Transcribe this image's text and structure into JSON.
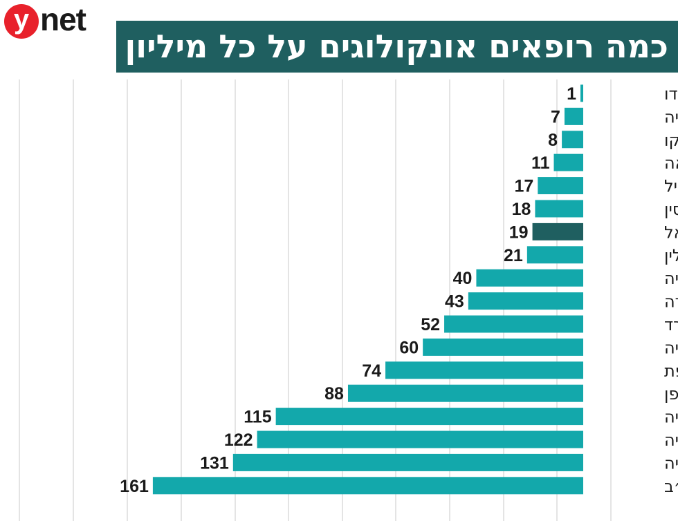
{
  "logo": {
    "initial": "y",
    "rest": "net"
  },
  "colors": {
    "bar": "#13a8ab",
    "highlight": "#1f5f60",
    "title_bg": "#1f5f60",
    "grid": "#c9c9c9",
    "logo_red": "#e8212b"
  },
  "chart_data": {
    "type": "bar",
    "orientation": "horizontal-right-to-left",
    "title": "כמה רופאים אונקולוגים על כל מיליון איש?",
    "highlight_category": "ישראל",
    "categories": [
      "הודו",
      "טורקיה",
      "מקסיקו",
      "קוריאה",
      "ברזיל",
      "סין",
      "ישראל",
      "פולין",
      "רוסיה",
      "קנדה",
      "ספרד",
      "אוסטרליה",
      "צרפת",
      "יפן",
      "גרמניה",
      "איטליה",
      "בריטניה",
      "ארה״ב"
    ],
    "values": [
      1,
      7,
      8,
      11,
      17,
      18,
      19,
      21,
      40,
      43,
      52,
      60,
      74,
      88,
      115,
      122,
      131,
      161
    ],
    "xlim": [
      0,
      161
    ],
    "grid": true
  }
}
